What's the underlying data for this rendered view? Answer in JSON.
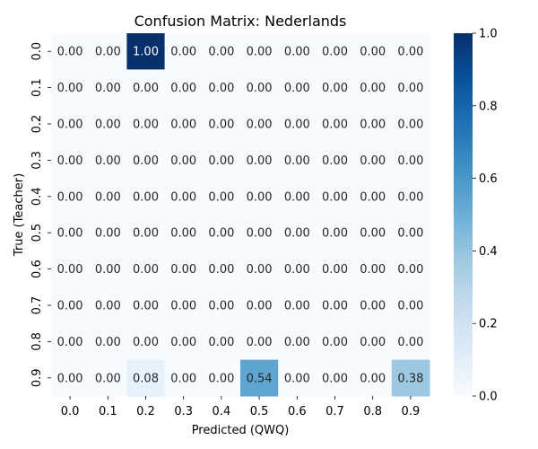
{
  "chart_data": {
    "type": "heatmap",
    "title": "Confusion Matrix: Nederlands",
    "xlabel": "Predicted (QWQ)",
    "ylabel": "True (Teacher)",
    "x_categories": [
      "0.0",
      "0.1",
      "0.2",
      "0.3",
      "0.4",
      "0.5",
      "0.6",
      "0.7",
      "0.8",
      "0.9"
    ],
    "y_categories": [
      "0.0",
      "0.1",
      "0.2",
      "0.3",
      "0.4",
      "0.5",
      "0.6",
      "0.7",
      "0.8",
      "0.9"
    ],
    "values": [
      [
        0.0,
        0.0,
        1.0,
        0.0,
        0.0,
        0.0,
        0.0,
        0.0,
        0.0,
        0.0
      ],
      [
        0.0,
        0.0,
        0.0,
        0.0,
        0.0,
        0.0,
        0.0,
        0.0,
        0.0,
        0.0
      ],
      [
        0.0,
        0.0,
        0.0,
        0.0,
        0.0,
        0.0,
        0.0,
        0.0,
        0.0,
        0.0
      ],
      [
        0.0,
        0.0,
        0.0,
        0.0,
        0.0,
        0.0,
        0.0,
        0.0,
        0.0,
        0.0
      ],
      [
        0.0,
        0.0,
        0.0,
        0.0,
        0.0,
        0.0,
        0.0,
        0.0,
        0.0,
        0.0
      ],
      [
        0.0,
        0.0,
        0.0,
        0.0,
        0.0,
        0.0,
        0.0,
        0.0,
        0.0,
        0.0
      ],
      [
        0.0,
        0.0,
        0.0,
        0.0,
        0.0,
        0.0,
        0.0,
        0.0,
        0.0,
        0.0
      ],
      [
        0.0,
        0.0,
        0.0,
        0.0,
        0.0,
        0.0,
        0.0,
        0.0,
        0.0,
        0.0
      ],
      [
        0.0,
        0.0,
        0.0,
        0.0,
        0.0,
        0.0,
        0.0,
        0.0,
        0.0,
        0.0
      ],
      [
        0.0,
        0.0,
        0.08,
        0.0,
        0.0,
        0.54,
        0.0,
        0.0,
        0.0,
        0.38
      ]
    ],
    "colorbar": {
      "range": [
        0,
        1
      ],
      "ticks": [
        "0.0",
        "0.2",
        "0.4",
        "0.6",
        "0.8",
        "1.0"
      ],
      "colormap": "Blues",
      "color_low": "#f7fbff",
      "color_high": "#08306b"
    }
  }
}
